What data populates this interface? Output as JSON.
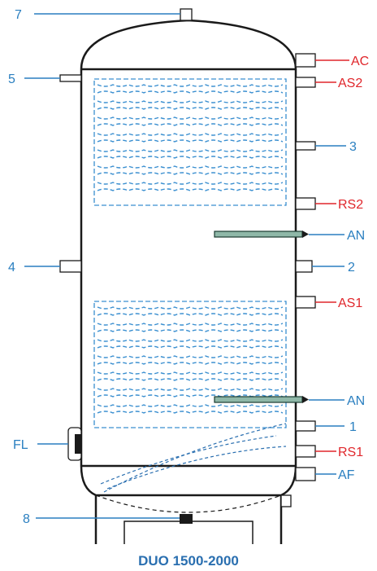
{
  "caption": "DUO 1500-2000",
  "labels": {
    "n7": "7",
    "n5": "5",
    "n4": "4",
    "fl": "FL",
    "n8": "8",
    "ac": "AC",
    "as2": "AS2",
    "n3": "3",
    "rs2": "RS2",
    "an_top": "AN",
    "n2": "2",
    "as1": "AS1",
    "an_bottom": "AN",
    "n1": "1",
    "rs1": "RS1",
    "af": "AF"
  },
  "colors": {
    "label_blue": "#2a7fc0",
    "label_red": "#e0262b",
    "coil_blue": "#3a8fd0",
    "outline": "#1a1a1a"
  }
}
